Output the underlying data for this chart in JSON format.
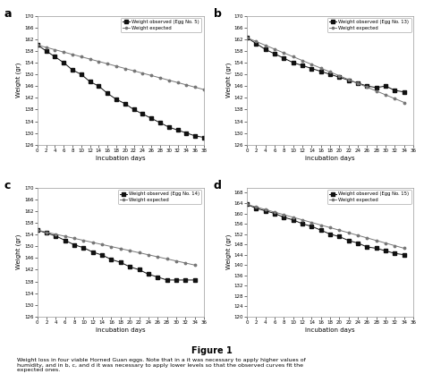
{
  "subplots": [
    {
      "label": "a",
      "legend_obs": "Weight observed (Egg No. 5)",
      "legend_exp": "Weight expected",
      "ylim": [
        126,
        170
      ],
      "xlim": [
        0,
        38
      ],
      "xticks": [
        0,
        2,
        4,
        6,
        8,
        10,
        12,
        14,
        16,
        18,
        20,
        22,
        24,
        26,
        28,
        30,
        32,
        34,
        36,
        38
      ],
      "yticks": [
        126,
        130,
        134,
        138,
        142,
        146,
        150,
        154,
        158,
        162,
        166,
        170
      ],
      "xlabel": "Incubation days",
      "ylabel": "Weight (gr)",
      "obs_x": [
        0,
        2,
        4,
        6,
        8,
        10,
        12,
        14,
        16,
        18,
        20,
        22,
        24,
        26,
        28,
        30,
        32,
        34,
        36,
        38
      ],
      "obs_y": [
        160.0,
        158.0,
        156.0,
        154.0,
        151.5,
        150.0,
        147.5,
        146.0,
        143.5,
        141.5,
        140.0,
        138.0,
        136.5,
        135.0,
        133.5,
        132.0,
        131.0,
        130.0,
        129.0,
        128.5
      ],
      "exp_x": [
        0,
        2,
        4,
        6,
        8,
        10,
        12,
        14,
        16,
        18,
        20,
        22,
        24,
        26,
        28,
        30,
        32,
        34,
        36,
        38
      ],
      "exp_y": [
        160.0,
        159.2,
        158.4,
        157.6,
        156.8,
        156.0,
        155.2,
        154.4,
        153.6,
        152.8,
        152.0,
        151.2,
        150.4,
        149.6,
        148.8,
        148.0,
        147.2,
        146.4,
        145.6,
        144.8
      ]
    },
    {
      "label": "b",
      "legend_obs": "Weight observed (Egg No. 13)",
      "legend_exp": "Weight expected",
      "ylim": [
        126,
        170
      ],
      "xlim": [
        0,
        36
      ],
      "xticks": [
        0,
        2,
        4,
        6,
        8,
        10,
        12,
        14,
        16,
        18,
        20,
        22,
        24,
        26,
        28,
        30,
        32,
        34,
        36
      ],
      "yticks": [
        126,
        130,
        134,
        138,
        142,
        146,
        150,
        154,
        158,
        162,
        166,
        170
      ],
      "xlabel": "incubation days",
      "ylabel": "Weight (gr)",
      "obs_x": [
        0,
        2,
        4,
        6,
        8,
        10,
        12,
        14,
        16,
        18,
        20,
        22,
        24,
        26,
        28,
        30,
        32,
        34
      ],
      "obs_y": [
        162.5,
        160.5,
        158.5,
        157.0,
        155.5,
        154.0,
        153.0,
        152.0,
        151.0,
        150.0,
        149.0,
        148.0,
        147.0,
        146.0,
        145.5,
        146.0,
        144.5,
        144.0
      ],
      "exp_x": [
        0,
        2,
        4,
        6,
        8,
        10,
        12,
        14,
        16,
        18,
        20,
        22,
        24,
        26,
        28,
        30,
        32,
        34
      ],
      "exp_y": [
        162.5,
        161.2,
        159.9,
        158.6,
        157.3,
        156.0,
        154.7,
        153.4,
        152.1,
        150.8,
        149.5,
        148.2,
        146.9,
        145.6,
        144.3,
        143.0,
        141.7,
        140.4
      ]
    },
    {
      "label": "c",
      "legend_obs": "Weight observed (Egg No. 14)",
      "legend_exp": "Weight expected",
      "ylim": [
        126,
        170
      ],
      "xlim": [
        0,
        36
      ],
      "xticks": [
        0,
        2,
        4,
        6,
        8,
        10,
        12,
        14,
        16,
        18,
        20,
        22,
        24,
        26,
        28,
        30,
        32,
        34,
        36
      ],
      "yticks": [
        126,
        130,
        134,
        138,
        142,
        146,
        150,
        154,
        158,
        162,
        166,
        170
      ],
      "xlabel": "Incubation days",
      "ylabel": "Weight (gr)",
      "obs_x": [
        0,
        2,
        4,
        6,
        8,
        10,
        12,
        14,
        16,
        18,
        20,
        22,
        24,
        26,
        28,
        30,
        32,
        34
      ],
      "obs_y": [
        155.5,
        154.5,
        153.5,
        152.0,
        150.5,
        149.5,
        148.0,
        147.0,
        145.5,
        144.5,
        143.0,
        142.0,
        140.5,
        139.5,
        138.5,
        138.5,
        138.5,
        138.5
      ],
      "exp_x": [
        0,
        2,
        4,
        6,
        8,
        10,
        12,
        14,
        16,
        18,
        20,
        22,
        24,
        26,
        28,
        30,
        32,
        34
      ],
      "exp_y": [
        155.5,
        154.8,
        154.1,
        153.4,
        152.7,
        152.0,
        151.3,
        150.6,
        149.9,
        149.2,
        148.5,
        147.8,
        147.1,
        146.4,
        145.7,
        145.0,
        144.3,
        143.6
      ]
    },
    {
      "label": "d",
      "legend_obs": "Weight observed (Egg No. 15)",
      "legend_exp": "Weight expected",
      "ylim": [
        120,
        170
      ],
      "xlim": [
        0,
        36
      ],
      "xticks": [
        0,
        2,
        4,
        6,
        8,
        10,
        12,
        14,
        16,
        18,
        20,
        22,
        24,
        26,
        28,
        30,
        32,
        34,
        36
      ],
      "yticks": [
        120,
        124,
        128,
        132,
        136,
        140,
        144,
        148,
        152,
        156,
        160,
        164,
        168
      ],
      "xlabel": "Incubation days",
      "ylabel": "Weight (gr)",
      "obs_x": [
        0,
        2,
        4,
        6,
        8,
        10,
        12,
        14,
        16,
        18,
        20,
        22,
        24,
        26,
        28,
        30,
        32,
        34
      ],
      "obs_y": [
        163.5,
        162.0,
        161.0,
        160.0,
        158.5,
        157.5,
        156.0,
        155.0,
        153.5,
        152.0,
        151.0,
        149.5,
        148.5,
        147.0,
        146.5,
        145.5,
        144.5,
        144.0
      ],
      "exp_x": [
        0,
        2,
        4,
        6,
        8,
        10,
        12,
        14,
        16,
        18,
        20,
        22,
        24,
        26,
        28,
        30,
        32,
        34
      ],
      "exp_y": [
        163.5,
        162.5,
        161.5,
        160.5,
        159.5,
        158.5,
        157.5,
        156.5,
        155.5,
        154.5,
        153.5,
        152.5,
        151.5,
        150.5,
        149.5,
        148.5,
        147.5,
        146.5
      ]
    }
  ],
  "figure_title": "Figure 1",
  "caption": "Weight loss in four viable Horned Guan eggs. Note that in a it was necessary to apply higher values of\nhumidity, and in b, c, and d it was necessary to apply lower levels so that the observed curves fit the\nexpected ones.",
  "bg_color": "#ffffff",
  "line_color": "#444444",
  "marker_obs_color": "#111111",
  "marker_exp_color": "#777777"
}
